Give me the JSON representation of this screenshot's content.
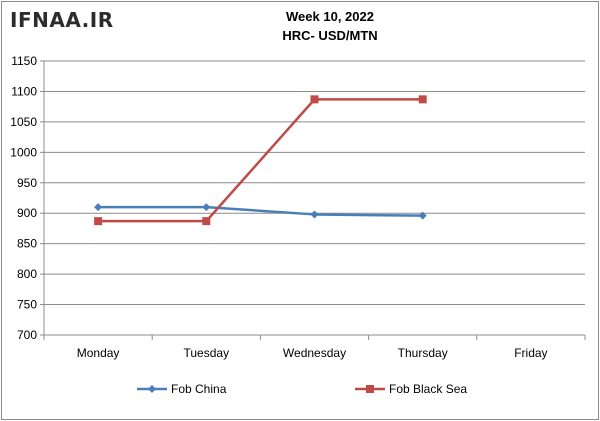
{
  "watermark": "IFNAA.IR",
  "chart_data": {
    "type": "line",
    "title": "Week 10, 2022",
    "subtitle": "HRC- USD/MTN",
    "categories": [
      "Monday",
      "Tuesday",
      "Wednesday",
      "Thursday",
      "Friday"
    ],
    "yticks": [
      "700",
      "750",
      "800",
      "850",
      "900",
      "950",
      "1000",
      "1050",
      "1100",
      "1150"
    ],
    "ylim": [
      700,
      1150
    ],
    "ystep": 50,
    "grid": true,
    "legend": "bottom",
    "series": [
      {
        "name": "Fob China",
        "values": [
          910,
          910,
          898,
          896,
          null
        ],
        "color": "#4a7ebb",
        "marker": "diamond"
      },
      {
        "name": "Fob Black Sea",
        "values": [
          887,
          887,
          1087,
          1087,
          null
        ],
        "color": "#be4b48",
        "marker": "square"
      }
    ]
  }
}
